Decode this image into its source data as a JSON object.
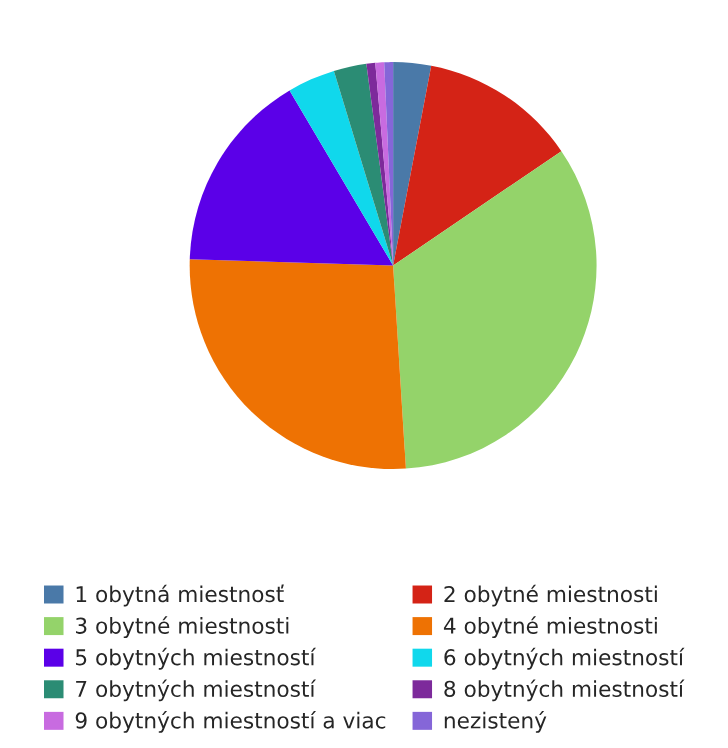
{
  "chart_data": {
    "type": "pie",
    "categories": [
      "1 obytná miestnosť",
      "2 obytné miestnosti",
      "3 obytné miestnosti",
      "4 obytné miestnosti",
      "5 obytných miestností",
      "6 obytných miestností",
      "7 obytných miestností",
      "8 obytných miestností",
      "9 obytných miestností a viac",
      "nezistený"
    ],
    "values": [
      3.0,
      12.5,
      33.5,
      26.5,
      16.0,
      3.8,
      2.6,
      0.7,
      0.7,
      0.7
    ],
    "colors": [
      "#4a79a8",
      "#d42316",
      "#94d36a",
      "#ee7203",
      "#5b00e8",
      "#10d8ec",
      "#2b8c74",
      "#7d2a9b",
      "#c86be0",
      "#8566d8"
    ],
    "legend": "bottom"
  }
}
